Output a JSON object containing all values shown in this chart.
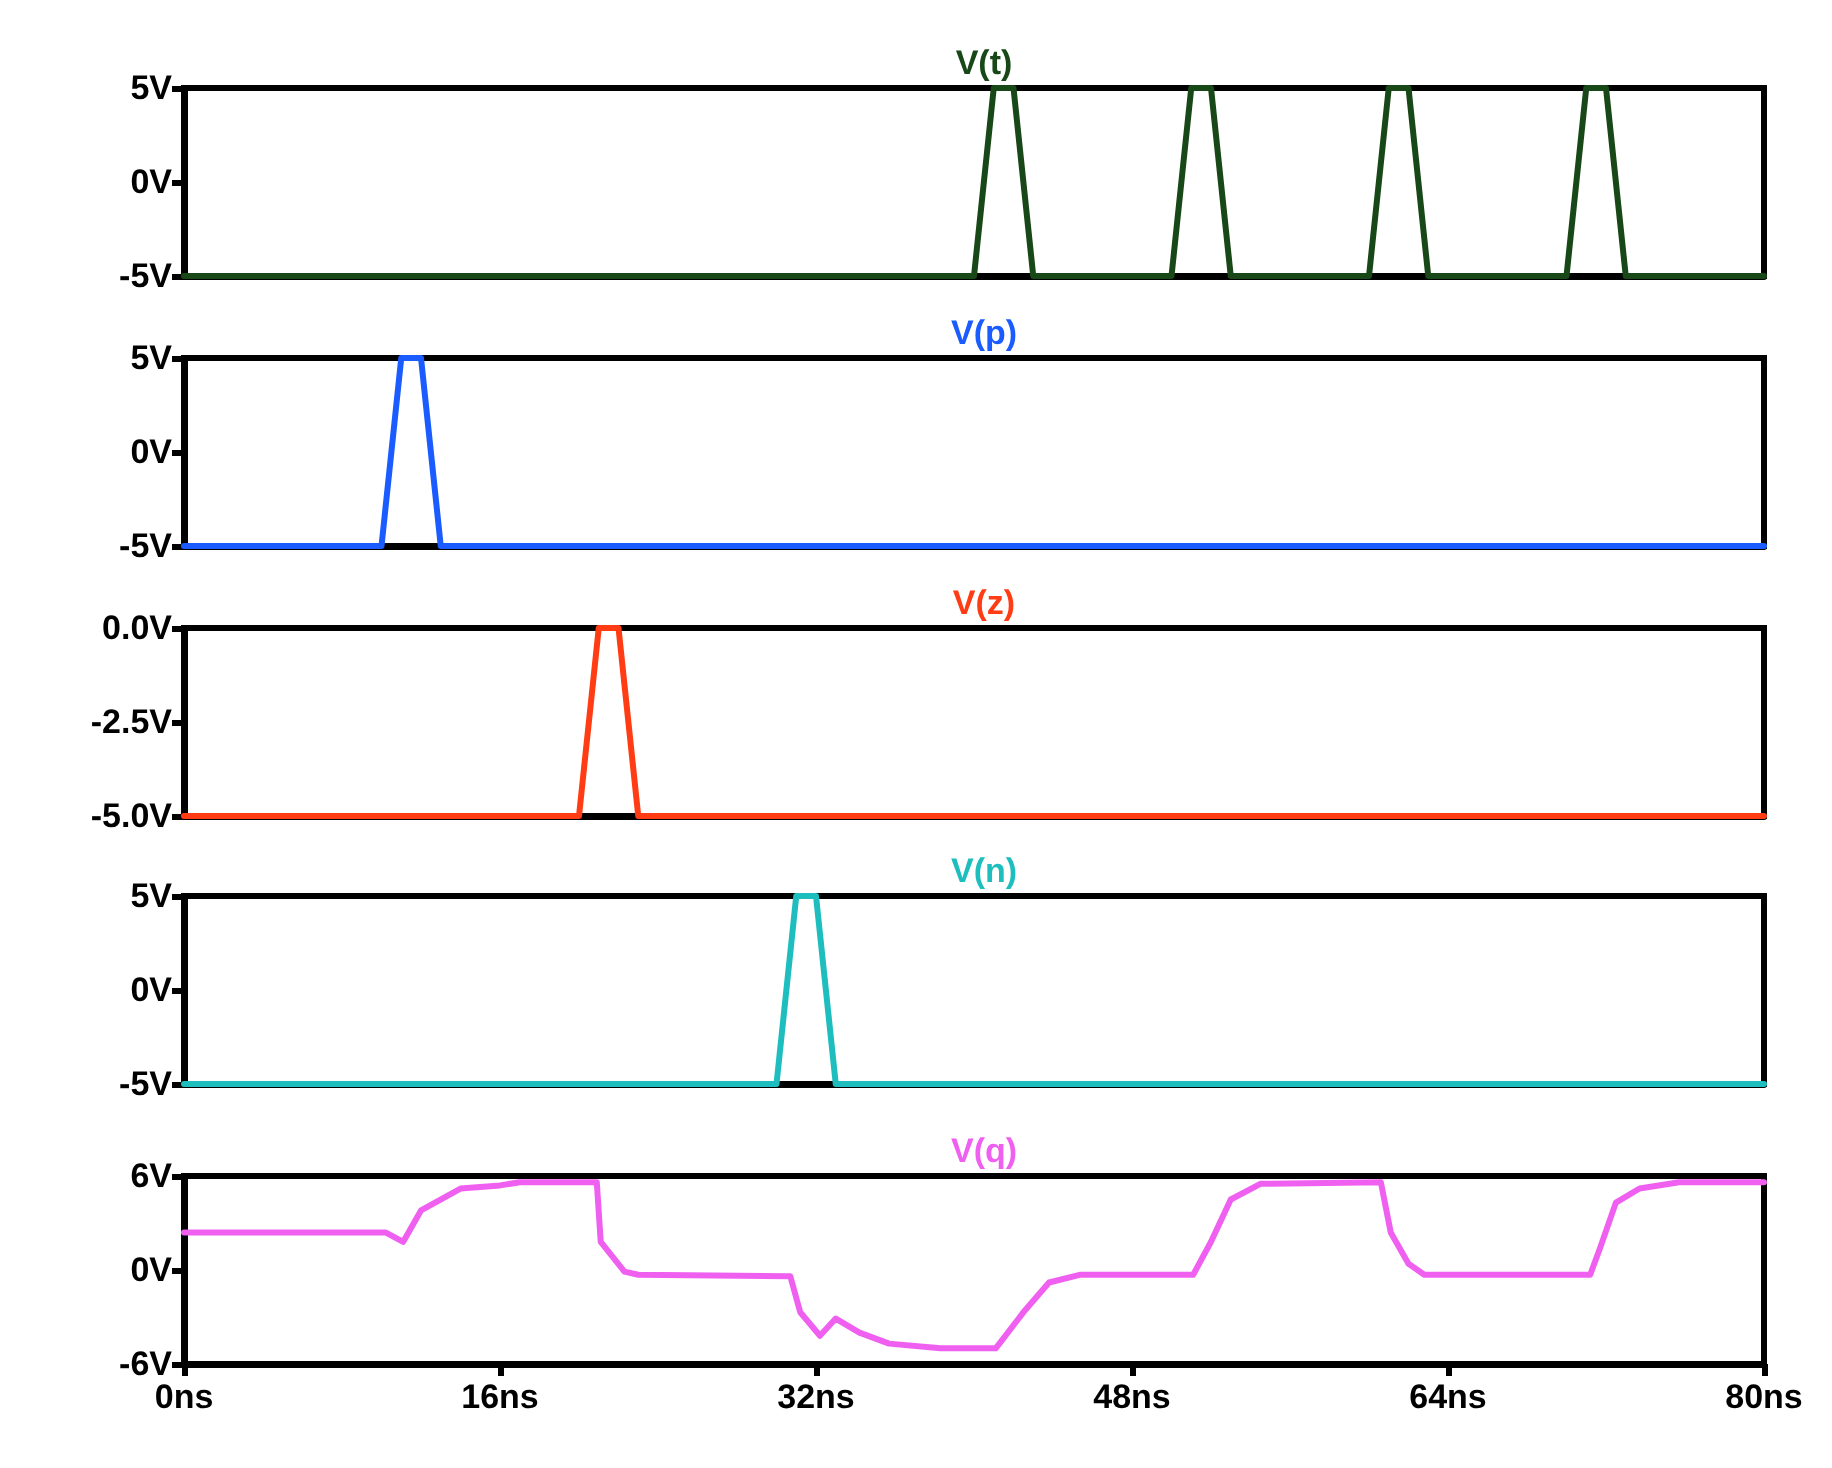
{
  "chart_data": [
    {
      "type": "line",
      "title": "V(t)",
      "xlim": [
        0,
        80
      ],
      "ylim": [
        -5,
        5
      ],
      "yticks": [
        {
          "value": -5,
          "label": "-5V"
        },
        {
          "value": 0,
          "label": "0V"
        },
        {
          "value": 5,
          "label": "5V"
        }
      ],
      "tick_labels": "y",
      "grid": false,
      "marker": "none",
      "line_style": "solid",
      "series": [
        {
          "color": "#184818",
          "x": [
            0,
            40,
            41,
            42,
            43,
            50,
            51,
            52,
            53,
            60,
            61,
            62,
            63,
            70,
            71,
            72,
            73,
            80
          ],
          "values": [
            -5,
            -5,
            5,
            5,
            -5,
            -5,
            5,
            5,
            -5,
            -5,
            5,
            5,
            -5,
            -5,
            5,
            5,
            -5,
            -5
          ]
        }
      ]
    },
    {
      "type": "line",
      "title": "V(p)",
      "xlim": [
        0,
        80
      ],
      "ylim": [
        -5,
        5
      ],
      "yticks": [
        {
          "value": -5,
          "label": "-5V"
        },
        {
          "value": 0,
          "label": "0V"
        },
        {
          "value": 5,
          "label": "5V"
        }
      ],
      "tick_labels": "y",
      "grid": false,
      "marker": "none",
      "line_style": "solid",
      "series": [
        {
          "color": "#1a5cff",
          "x": [
            0,
            10,
            11,
            12,
            13,
            80
          ],
          "values": [
            -5,
            -5,
            5,
            5,
            -5,
            -5
          ]
        }
      ]
    },
    {
      "type": "line",
      "title": "V(z)",
      "xlim": [
        0,
        80
      ],
      "ylim": [
        -5,
        0
      ],
      "yticks": [
        {
          "value": -5,
          "label": "-5.0V"
        },
        {
          "value": -2.5,
          "label": "-2.5V"
        },
        {
          "value": 0,
          "label": "0.0V"
        }
      ],
      "tick_labels": "y",
      "grid": false,
      "marker": "none",
      "line_style": "solid",
      "series": [
        {
          "color": "#ff3c14",
          "x": [
            0,
            20,
            21,
            22,
            23,
            80
          ],
          "values": [
            -5,
            -5,
            0,
            0,
            -5,
            -5
          ]
        }
      ]
    },
    {
      "type": "line",
      "title": "V(n)",
      "xlim": [
        0,
        80
      ],
      "ylim": [
        -5,
        5
      ],
      "yticks": [
        {
          "value": -5,
          "label": "-5V"
        },
        {
          "value": 0,
          "label": "0V"
        },
        {
          "value": 5,
          "label": "5V"
        }
      ],
      "tick_labels": "y",
      "grid": false,
      "marker": "none",
      "line_style": "solid",
      "series": [
        {
          "color": "#1ebebe",
          "x": [
            0,
            30,
            31,
            32,
            33,
            80
          ],
          "values": [
            -5,
            -5,
            5,
            5,
            -5,
            -5
          ]
        }
      ]
    },
    {
      "type": "line",
      "title": "V(q)",
      "xlim": [
        0,
        80
      ],
      "ylim": [
        -6,
        6
      ],
      "yticks": [
        {
          "value": -6,
          "label": "-6V"
        },
        {
          "value": 0,
          "label": "0V"
        },
        {
          "value": 6,
          "label": "6V"
        }
      ],
      "xticks": [
        {
          "value": 0,
          "label": "0ns"
        },
        {
          "value": 16,
          "label": "16ns"
        },
        {
          "value": 32,
          "label": "32ns"
        },
        {
          "value": 48,
          "label": "48ns"
        },
        {
          "value": 64,
          "label": "64ns"
        },
        {
          "value": 80,
          "label": "80ns"
        }
      ],
      "grid": false,
      "marker": "none",
      "line_style": "solid",
      "series": [
        {
          "color": "#f060f0",
          "x": [
            0,
            10.2,
            11.1,
            12,
            14,
            16,
            17,
            20.9,
            21.1,
            22.3,
            23,
            30.7,
            31.2,
            32.2,
            33,
            34.2,
            35.7,
            38.3,
            41.1,
            42.5,
            43.8,
            45.4,
            51.1,
            52,
            53,
            54.5,
            60.6,
            61.1,
            62,
            62.8,
            71.2,
            71.7,
            72.5,
            73.7,
            75.7,
            80
          ],
          "values": [
            2.4,
            2.4,
            1.8,
            3.8,
            5.2,
            5.4,
            5.6,
            5.6,
            1.8,
            -0.1,
            -0.3,
            -0.4,
            -2.7,
            -4.2,
            -3.1,
            -4,
            -4.7,
            -5,
            -5,
            -2.7,
            -0.8,
            -0.3,
            -0.3,
            1.8,
            4.5,
            5.5,
            5.6,
            2.4,
            0.4,
            -0.3,
            -0.3,
            1.4,
            4.3,
            5.2,
            5.6,
            5.6
          ]
        }
      ]
    }
  ]
}
